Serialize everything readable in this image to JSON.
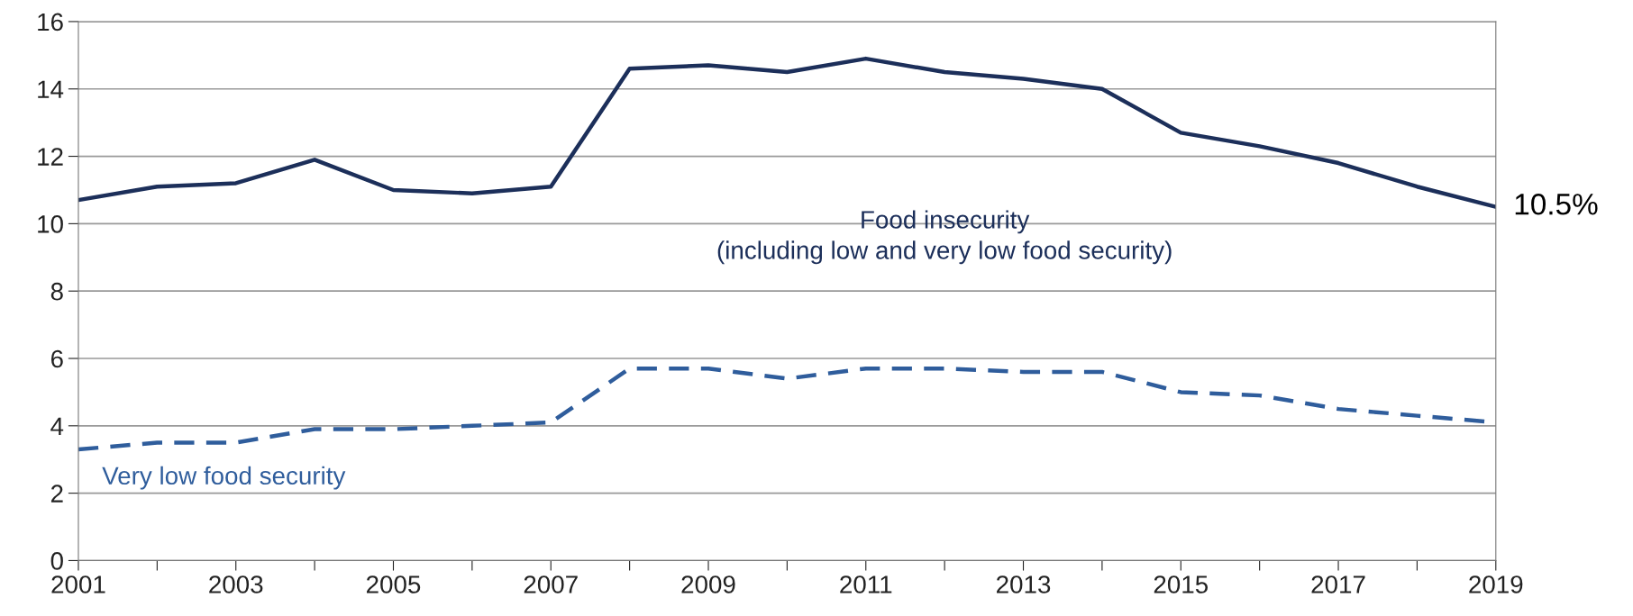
{
  "chart_data": {
    "type": "line",
    "x": [
      2001,
      2002,
      2003,
      2004,
      2005,
      2006,
      2007,
      2008,
      2009,
      2010,
      2011,
      2012,
      2013,
      2014,
      2015,
      2016,
      2017,
      2018,
      2019
    ],
    "series": [
      {
        "name": "Food insecurity\n(including low and very low food security)",
        "color": "#1c2f5a",
        "line_style": "solid",
        "values": [
          10.7,
          11.1,
          11.2,
          11.9,
          11.0,
          10.9,
          11.1,
          14.6,
          14.7,
          14.5,
          14.9,
          14.5,
          14.3,
          14.0,
          12.7,
          12.3,
          11.8,
          11.1,
          10.5
        ]
      },
      {
        "name": "Very low food security",
        "color": "#2f5d9c",
        "line_style": "dashed",
        "values": [
          3.3,
          3.5,
          3.5,
          3.9,
          3.9,
          4.0,
          4.1,
          5.7,
          5.7,
          5.4,
          5.7,
          5.7,
          5.6,
          5.6,
          5.0,
          4.9,
          4.5,
          4.3,
          4.1
        ]
      }
    ],
    "xlim": [
      2001,
      2019
    ],
    "xticks": [
      2001,
      {
        "value": 2002,
        "label": null
      },
      2003,
      {
        "value": 2004,
        "label": null
      },
      2005,
      {
        "value": 2006,
        "label": null
      },
      2007,
      {
        "value": 2008,
        "label": null
      },
      2009,
      {
        "value": 2010,
        "label": null
      },
      2011,
      {
        "value": 2012,
        "label": null
      },
      2013,
      {
        "value": 2014,
        "label": null
      },
      2015,
      {
        "value": 2016,
        "label": null
      },
      2017,
      {
        "value": 2018,
        "label": null
      },
      2019
    ],
    "ylim": [
      0,
      16
    ],
    "yticks": [
      0,
      2,
      4,
      6,
      8,
      10,
      12,
      14,
      16
    ],
    "grid": "y",
    "legend": false,
    "marker": "none",
    "annotations": [
      {
        "text": "10.5%",
        "x": 2019,
        "y": 10.5
      }
    ]
  }
}
